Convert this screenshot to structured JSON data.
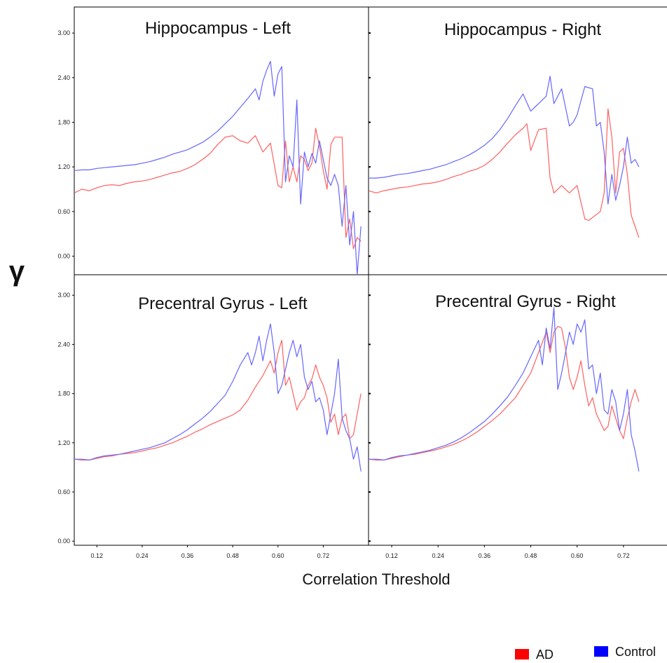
{
  "figure": {
    "y_symbol": "γ",
    "xlabel": "Correlation Threshold"
  },
  "legend": [
    {
      "name": "AD",
      "color": "#ff0000"
    },
    {
      "name": "Control",
      "color": "#0000ff"
    }
  ],
  "colors": {
    "ad": "#ff6060",
    "control": "#6666ff",
    "axis": "#000000"
  },
  "chart_data": [
    {
      "type": "line",
      "title": "Hippocampus - Left",
      "xlim": [
        0.06,
        0.84
      ],
      "ylim": [
        -0.25,
        3.35
      ],
      "yticks": [
        "0.00",
        "0.60",
        "1.20",
        "1.80",
        "2.40",
        "3.00"
      ],
      "xticks": [],
      "series": [
        {
          "name": "AD",
          "color": "#ff6060",
          "x": [
            0.06,
            0.08,
            0.1,
            0.12,
            0.14,
            0.16,
            0.18,
            0.2,
            0.22,
            0.24,
            0.26,
            0.28,
            0.3,
            0.32,
            0.34,
            0.36,
            0.38,
            0.4,
            0.42,
            0.44,
            0.46,
            0.48,
            0.5,
            0.52,
            0.54,
            0.56,
            0.58,
            0.6,
            0.61,
            0.62,
            0.63,
            0.64,
            0.65,
            0.66,
            0.67,
            0.68,
            0.69,
            0.7,
            0.71,
            0.72,
            0.73,
            0.74,
            0.75,
            0.76,
            0.77,
            0.78,
            0.79,
            0.8,
            0.81,
            0.82
          ],
          "y": [
            0.85,
            0.9,
            0.88,
            0.92,
            0.95,
            0.96,
            0.95,
            0.98,
            1.0,
            1.01,
            1.03,
            1.06,
            1.09,
            1.12,
            1.14,
            1.18,
            1.23,
            1.3,
            1.38,
            1.5,
            1.6,
            1.62,
            1.55,
            1.52,
            1.62,
            1.4,
            1.52,
            0.95,
            0.92,
            1.55,
            1.0,
            1.2,
            1.0,
            1.35,
            1.3,
            1.15,
            1.25,
            1.72,
            1.48,
            1.15,
            0.9,
            1.5,
            1.6,
            1.6,
            1.6,
            0.25,
            0.5,
            0.1,
            0.25,
            0.2
          ]
        },
        {
          "name": "Control",
          "color": "#6666ff",
          "x": [
            0.06,
            0.08,
            0.1,
            0.12,
            0.14,
            0.16,
            0.18,
            0.2,
            0.22,
            0.24,
            0.26,
            0.28,
            0.3,
            0.32,
            0.34,
            0.36,
            0.38,
            0.4,
            0.42,
            0.44,
            0.46,
            0.48,
            0.5,
            0.52,
            0.54,
            0.55,
            0.56,
            0.57,
            0.58,
            0.59,
            0.6,
            0.61,
            0.62,
            0.63,
            0.64,
            0.65,
            0.66,
            0.67,
            0.68,
            0.69,
            0.7,
            0.71,
            0.72,
            0.73,
            0.74,
            0.75,
            0.76,
            0.77,
            0.78,
            0.79,
            0.8,
            0.81,
            0.82
          ],
          "y": [
            1.15,
            1.16,
            1.16,
            1.18,
            1.19,
            1.2,
            1.21,
            1.22,
            1.23,
            1.25,
            1.27,
            1.3,
            1.33,
            1.37,
            1.4,
            1.43,
            1.48,
            1.53,
            1.6,
            1.68,
            1.78,
            1.88,
            2.0,
            2.12,
            2.25,
            2.1,
            2.35,
            2.5,
            2.62,
            2.15,
            2.45,
            2.55,
            1.0,
            1.35,
            1.2,
            2.1,
            0.7,
            1.4,
            1.2,
            1.38,
            1.25,
            1.55,
            1.3,
            1.05,
            0.95,
            1.1,
            0.95,
            0.4,
            0.95,
            0.15,
            0.6,
            -0.25,
            0.4
          ]
        }
      ]
    },
    {
      "type": "line",
      "title": "Hippocampus - Right",
      "xlim": [
        0.06,
        0.84
      ],
      "ylim": [
        -0.25,
        3.35
      ],
      "yticks": [],
      "xticks": [],
      "series": [
        {
          "name": "AD",
          "color": "#ff6060",
          "x": [
            0.06,
            0.08,
            0.1,
            0.12,
            0.14,
            0.16,
            0.18,
            0.2,
            0.22,
            0.24,
            0.26,
            0.28,
            0.3,
            0.32,
            0.34,
            0.36,
            0.38,
            0.4,
            0.42,
            0.44,
            0.46,
            0.47,
            0.48,
            0.5,
            0.52,
            0.53,
            0.54,
            0.56,
            0.58,
            0.6,
            0.62,
            0.63,
            0.64,
            0.66,
            0.67,
            0.68,
            0.69,
            0.7,
            0.71,
            0.72,
            0.73,
            0.74,
            0.75,
            0.76
          ],
          "y": [
            0.88,
            0.85,
            0.88,
            0.9,
            0.92,
            0.93,
            0.95,
            0.97,
            0.98,
            1.0,
            1.03,
            1.07,
            1.1,
            1.14,
            1.17,
            1.22,
            1.3,
            1.4,
            1.52,
            1.63,
            1.72,
            1.78,
            1.42,
            1.7,
            1.72,
            1.05,
            0.85,
            0.95,
            0.85,
            0.95,
            0.5,
            0.48,
            0.52,
            0.6,
            0.85,
            1.98,
            1.6,
            0.85,
            1.4,
            1.45,
            1.1,
            0.55,
            0.4,
            0.25
          ]
        },
        {
          "name": "Control",
          "color": "#6666ff",
          "x": [
            0.06,
            0.08,
            0.1,
            0.12,
            0.14,
            0.16,
            0.18,
            0.2,
            0.22,
            0.24,
            0.26,
            0.28,
            0.3,
            0.32,
            0.34,
            0.36,
            0.38,
            0.4,
            0.42,
            0.44,
            0.46,
            0.48,
            0.5,
            0.52,
            0.53,
            0.54,
            0.56,
            0.58,
            0.59,
            0.6,
            0.62,
            0.64,
            0.65,
            0.66,
            0.67,
            0.68,
            0.69,
            0.7,
            0.71,
            0.72,
            0.73,
            0.74,
            0.75,
            0.76
          ],
          "y": [
            1.05,
            1.05,
            1.06,
            1.08,
            1.1,
            1.11,
            1.13,
            1.15,
            1.17,
            1.2,
            1.23,
            1.27,
            1.31,
            1.36,
            1.42,
            1.49,
            1.58,
            1.7,
            1.85,
            2.02,
            2.18,
            1.95,
            2.05,
            2.15,
            2.42,
            2.05,
            2.25,
            1.75,
            1.8,
            1.9,
            2.28,
            2.25,
            1.75,
            1.8,
            1.4,
            0.7,
            1.1,
            0.75,
            0.95,
            1.2,
            1.6,
            1.25,
            1.3,
            1.2
          ]
        }
      ]
    },
    {
      "type": "line",
      "title": "Precentral Gyrus - Left",
      "xlim": [
        0.06,
        0.84
      ],
      "ylim": [
        -0.05,
        3.25
      ],
      "yticks": [
        "0.00",
        "0.60",
        "1.20",
        "1.80",
        "2.40",
        "3.00"
      ],
      "xticks": [
        "0.12",
        "0.24",
        "0.36",
        "0.48",
        "0.60",
        "0.72"
      ],
      "series": [
        {
          "name": "AD",
          "color": "#ff6060",
          "x": [
            0.06,
            0.08,
            0.1,
            0.12,
            0.14,
            0.16,
            0.18,
            0.2,
            0.22,
            0.24,
            0.26,
            0.28,
            0.3,
            0.32,
            0.34,
            0.36,
            0.38,
            0.4,
            0.42,
            0.44,
            0.46,
            0.48,
            0.5,
            0.52,
            0.54,
            0.56,
            0.58,
            0.59,
            0.6,
            0.61,
            0.62,
            0.63,
            0.64,
            0.65,
            0.66,
            0.67,
            0.68,
            0.69,
            0.7,
            0.71,
            0.72,
            0.73,
            0.74,
            0.75,
            0.76,
            0.77,
            0.78,
            0.79,
            0.8,
            0.81,
            0.82
          ],
          "y": [
            1.0,
            0.99,
            0.99,
            1.01,
            1.03,
            1.04,
            1.06,
            1.07,
            1.08,
            1.1,
            1.12,
            1.14,
            1.17,
            1.2,
            1.24,
            1.28,
            1.33,
            1.37,
            1.42,
            1.46,
            1.5,
            1.54,
            1.6,
            1.72,
            1.88,
            2.02,
            2.2,
            2.05,
            2.3,
            2.45,
            1.9,
            2.0,
            1.8,
            1.6,
            1.7,
            1.75,
            1.9,
            1.98,
            2.15,
            2.0,
            1.9,
            1.75,
            1.45,
            1.55,
            1.3,
            1.5,
            1.55,
            1.25,
            1.3,
            1.55,
            1.8
          ]
        },
        {
          "name": "Control",
          "color": "#6666ff",
          "x": [
            0.06,
            0.08,
            0.1,
            0.12,
            0.14,
            0.16,
            0.18,
            0.2,
            0.22,
            0.24,
            0.26,
            0.28,
            0.3,
            0.32,
            0.34,
            0.36,
            0.38,
            0.4,
            0.42,
            0.44,
            0.46,
            0.48,
            0.5,
            0.52,
            0.53,
            0.54,
            0.55,
            0.56,
            0.57,
            0.58,
            0.59,
            0.6,
            0.61,
            0.62,
            0.63,
            0.64,
            0.65,
            0.66,
            0.67,
            0.68,
            0.69,
            0.7,
            0.71,
            0.72,
            0.73,
            0.74,
            0.75,
            0.76,
            0.77,
            0.78,
            0.79,
            0.8,
            0.81,
            0.82
          ],
          "y": [
            1.0,
            1.0,
            0.99,
            1.02,
            1.04,
            1.05,
            1.06,
            1.08,
            1.1,
            1.12,
            1.14,
            1.17,
            1.2,
            1.25,
            1.3,
            1.36,
            1.43,
            1.5,
            1.58,
            1.68,
            1.78,
            1.95,
            2.15,
            2.3,
            2.15,
            2.3,
            2.5,
            2.2,
            2.45,
            2.65,
            2.3,
            1.8,
            1.9,
            2.1,
            2.3,
            2.45,
            2.25,
            2.4,
            2.0,
            1.85,
            1.95,
            1.7,
            1.75,
            1.6,
            1.3,
            1.55,
            1.8,
            2.22,
            1.5,
            1.35,
            1.25,
            1.0,
            1.15,
            0.85
          ]
        }
      ]
    },
    {
      "type": "line",
      "title": "Precentral Gyrus - Right",
      "xlim": [
        0.06,
        0.84
      ],
      "ylim": [
        -0.05,
        3.25
      ],
      "yticks": [],
      "xticks": [
        "0.12",
        "0.24",
        "0.36",
        "0.48",
        "0.60",
        "0.72"
      ],
      "series": [
        {
          "name": "AD",
          "color": "#ff6060",
          "x": [
            0.06,
            0.08,
            0.1,
            0.12,
            0.14,
            0.16,
            0.18,
            0.2,
            0.22,
            0.24,
            0.26,
            0.28,
            0.3,
            0.32,
            0.34,
            0.36,
            0.38,
            0.4,
            0.42,
            0.44,
            0.46,
            0.48,
            0.5,
            0.52,
            0.53,
            0.54,
            0.55,
            0.56,
            0.57,
            0.58,
            0.59,
            0.6,
            0.61,
            0.62,
            0.63,
            0.64,
            0.65,
            0.66,
            0.67,
            0.68,
            0.69,
            0.7,
            0.71,
            0.72,
            0.73,
            0.74,
            0.75,
            0.76
          ],
          "y": [
            1.0,
            0.99,
            0.99,
            1.01,
            1.03,
            1.05,
            1.06,
            1.08,
            1.1,
            1.12,
            1.15,
            1.18,
            1.22,
            1.27,
            1.33,
            1.4,
            1.47,
            1.55,
            1.65,
            1.75,
            1.9,
            2.05,
            2.3,
            2.55,
            2.3,
            2.55,
            2.62,
            2.6,
            2.35,
            2.0,
            1.85,
            2.0,
            2.2,
            1.9,
            1.65,
            1.75,
            1.55,
            1.45,
            1.35,
            1.4,
            1.65,
            1.5,
            1.35,
            1.25,
            1.5,
            1.7,
            1.85,
            1.7
          ]
        },
        {
          "name": "Control",
          "color": "#6666ff",
          "x": [
            0.06,
            0.08,
            0.1,
            0.12,
            0.14,
            0.16,
            0.18,
            0.2,
            0.22,
            0.24,
            0.26,
            0.28,
            0.3,
            0.32,
            0.34,
            0.36,
            0.38,
            0.4,
            0.42,
            0.44,
            0.46,
            0.48,
            0.5,
            0.51,
            0.52,
            0.53,
            0.54,
            0.55,
            0.56,
            0.57,
            0.58,
            0.59,
            0.6,
            0.61,
            0.62,
            0.63,
            0.64,
            0.65,
            0.66,
            0.67,
            0.68,
            0.69,
            0.7,
            0.71,
            0.72,
            0.73,
            0.74,
            0.75,
            0.76
          ],
          "y": [
            1.0,
            1.0,
            0.99,
            1.02,
            1.04,
            1.05,
            1.07,
            1.09,
            1.11,
            1.14,
            1.17,
            1.21,
            1.26,
            1.32,
            1.39,
            1.46,
            1.55,
            1.65,
            1.76,
            1.9,
            2.05,
            2.25,
            2.45,
            2.15,
            2.6,
            2.35,
            2.85,
            1.85,
            2.05,
            2.3,
            2.55,
            2.4,
            2.65,
            2.55,
            2.7,
            2.1,
            2.15,
            1.8,
            2.05,
            1.6,
            1.55,
            1.85,
            1.7,
            1.35,
            1.55,
            1.85,
            1.3,
            1.1,
            0.85
          ]
        }
      ]
    }
  ]
}
